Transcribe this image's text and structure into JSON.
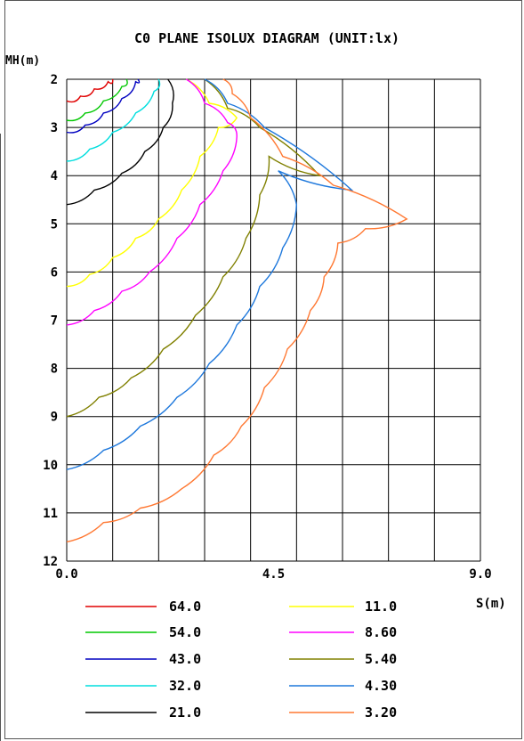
{
  "chart_data": {
    "type": "line",
    "title": "C0 PLANE ISOLUX DIAGRAM (UNIT:lx)",
    "ylabel": "MH(m)",
    "xlabel": "S(m)",
    "xlim": [
      0,
      9
    ],
    "ylim": [
      2,
      12
    ],
    "y_inverted": true,
    "x_ticks": [
      "0.0",
      "4.5",
      "9.0"
    ],
    "y_ticks": [
      "2",
      "3",
      "4",
      "5",
      "6",
      "7",
      "8",
      "9",
      "10",
      "11",
      "12"
    ],
    "grid": true,
    "legend_position": "bottom",
    "series": [
      {
        "name": "64.0",
        "color": "#e00000",
        "points": [
          [
            0,
            2.45
          ],
          [
            0.3,
            2.35
          ],
          [
            0.6,
            2.2
          ],
          [
            0.9,
            2.05
          ],
          [
            1.0,
            2.0
          ]
        ]
      },
      {
        "name": "54.0",
        "color": "#00c800",
        "points": [
          [
            0,
            2.85
          ],
          [
            0.4,
            2.7
          ],
          [
            0.8,
            2.45
          ],
          [
            1.2,
            2.15
          ],
          [
            1.3,
            2.0
          ]
        ]
      },
      {
        "name": "43.0",
        "color": "#0000c0",
        "points": [
          [
            0,
            3.1
          ],
          [
            0.4,
            2.95
          ],
          [
            0.8,
            2.7
          ],
          [
            1.2,
            2.4
          ],
          [
            1.5,
            2.05
          ],
          [
            1.55,
            2.0
          ]
        ]
      },
      {
        "name": "32.0",
        "color": "#00dede",
        "points": [
          [
            0,
            3.7
          ],
          [
            0.5,
            3.45
          ],
          [
            1.0,
            3.1
          ],
          [
            1.5,
            2.7
          ],
          [
            1.9,
            2.25
          ],
          [
            2.0,
            2.0
          ]
        ]
      },
      {
        "name": "21.0",
        "color": "#000000",
        "points": [
          [
            0,
            4.6
          ],
          [
            0.6,
            4.3
          ],
          [
            1.2,
            3.95
          ],
          [
            1.7,
            3.5
          ],
          [
            2.1,
            3.0
          ],
          [
            2.3,
            2.5
          ],
          [
            2.2,
            2.0
          ]
        ]
      },
      {
        "name": "11.0",
        "color": "#ffff00",
        "points": [
          [
            0,
            6.3
          ],
          [
            0.5,
            6.05
          ],
          [
            1.0,
            5.7
          ],
          [
            1.5,
            5.3
          ],
          [
            2.0,
            4.9
          ],
          [
            2.5,
            4.3
          ],
          [
            2.9,
            3.6
          ],
          [
            3.3,
            3.0
          ],
          [
            3.7,
            2.8
          ],
          [
            3.1,
            2.5
          ],
          [
            2.6,
            2.0
          ]
        ]
      },
      {
        "name": "8.60",
        "color": "#ff00ff",
        "points": [
          [
            0,
            7.1
          ],
          [
            0.6,
            6.8
          ],
          [
            1.2,
            6.4
          ],
          [
            1.8,
            6.0
          ],
          [
            2.4,
            5.3
          ],
          [
            2.9,
            4.6
          ],
          [
            3.4,
            3.9
          ],
          [
            3.7,
            3.2
          ],
          [
            3.5,
            2.9
          ],
          [
            3.0,
            2.5
          ],
          [
            2.6,
            2.0
          ]
        ]
      },
      {
        "name": "5.40",
        "color": "#808000",
        "points": [
          [
            0,
            9.0
          ],
          [
            0.7,
            8.6
          ],
          [
            1.4,
            8.2
          ],
          [
            2.1,
            7.6
          ],
          [
            2.8,
            6.9
          ],
          [
            3.4,
            6.1
          ],
          [
            3.9,
            5.3
          ],
          [
            4.2,
            4.4
          ],
          [
            4.4,
            3.6
          ],
          [
            5.5,
            4.0
          ],
          [
            4.2,
            3.0
          ],
          [
            3.5,
            2.6
          ],
          [
            3.0,
            2.0
          ]
        ]
      },
      {
        "name": "4.30",
        "color": "#1e78dc",
        "points": [
          [
            0,
            10.1
          ],
          [
            0.8,
            9.7
          ],
          [
            1.6,
            9.2
          ],
          [
            2.4,
            8.6
          ],
          [
            3.1,
            7.9
          ],
          [
            3.7,
            7.1
          ],
          [
            4.2,
            6.3
          ],
          [
            4.7,
            5.5
          ],
          [
            5.0,
            4.6
          ],
          [
            4.6,
            3.9
          ],
          [
            6.2,
            4.3
          ],
          [
            4.3,
            3.0
          ],
          [
            3.5,
            2.5
          ],
          [
            3.0,
            2.0
          ]
        ]
      },
      {
        "name": "3.20",
        "color": "#ff7832",
        "points": [
          [
            0,
            11.6
          ],
          [
            0.8,
            11.2
          ],
          [
            1.6,
            10.9
          ],
          [
            2.5,
            10.5
          ],
          [
            3.2,
            9.8
          ],
          [
            3.8,
            9.2
          ],
          [
            4.3,
            8.4
          ],
          [
            4.8,
            7.6
          ],
          [
            5.3,
            6.8
          ],
          [
            5.6,
            6.1
          ],
          [
            5.9,
            5.4
          ],
          [
            6.5,
            5.1
          ],
          [
            7.4,
            4.9
          ],
          [
            5.8,
            4.2
          ],
          [
            4.7,
            3.6
          ],
          [
            4.0,
            2.8
          ],
          [
            3.6,
            2.3
          ],
          [
            3.4,
            2.0
          ]
        ]
      }
    ]
  }
}
